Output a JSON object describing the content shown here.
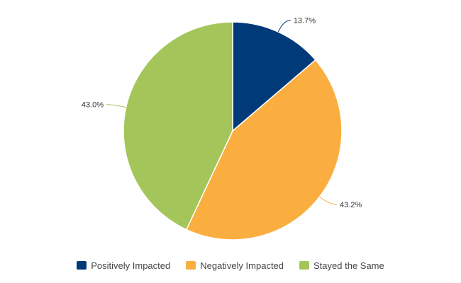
{
  "chart_data": {
    "type": "pie",
    "title": "",
    "legend_position": "bottom",
    "slices": [
      {
        "name": "Positively Impacted",
        "value": 13.7,
        "label": "13.7%",
        "color": "#003a78"
      },
      {
        "name": "Negatively Impacted",
        "value": 43.2,
        "label": "43.2%",
        "color": "#faae40"
      },
      {
        "name": "Stayed the Same",
        "value": 43.0,
        "label": "43.0%",
        "color": "#a4c55a"
      }
    ]
  }
}
